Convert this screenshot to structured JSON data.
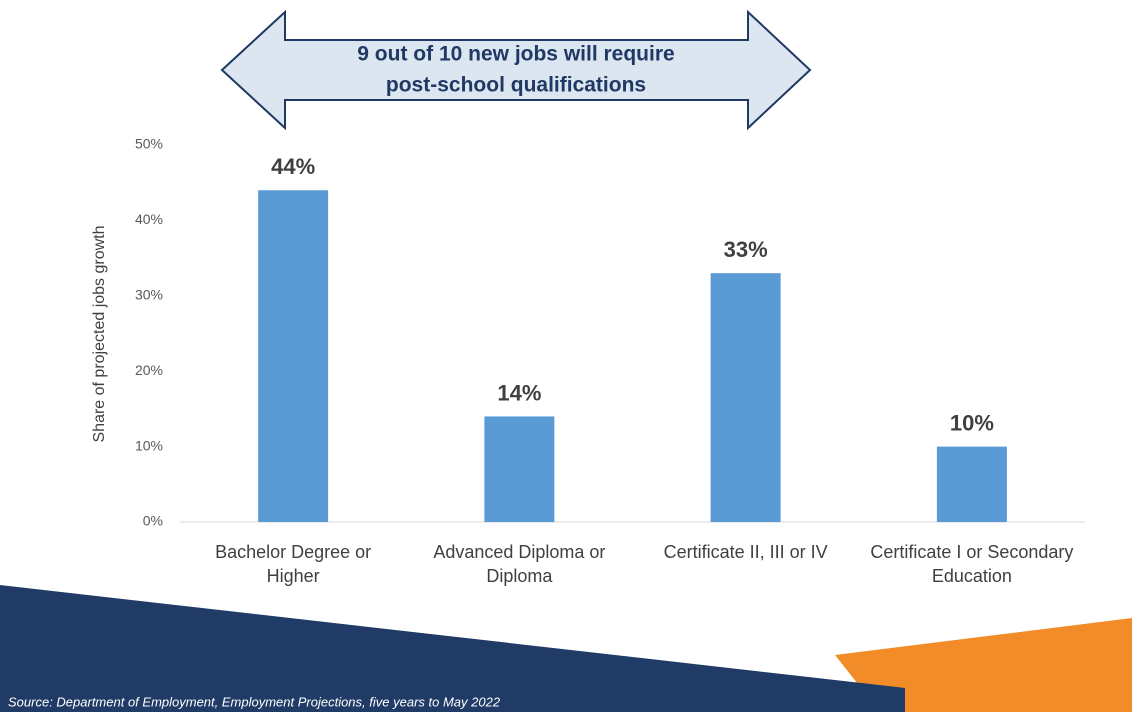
{
  "chart_data": {
    "type": "bar",
    "annotation": [
      "9 out of 10 new jobs will require",
      "post-school qualifications"
    ],
    "y_label": "Share of projected jobs growth",
    "categories": [
      "Bachelor Degree or Higher",
      "Advanced Diploma or Diploma",
      "Certificate II, III or IV",
      "Certificate I or Secondary Education"
    ],
    "values": [
      44,
      14,
      33,
      10
    ],
    "value_labels": [
      "44%",
      "14%",
      "33%",
      "10%"
    ],
    "color": "#5b9bd5",
    "ylim": [
      0,
      50
    ],
    "yticks": [
      {
        "value": 0,
        "label": "0%"
      },
      {
        "value": 10,
        "label": "10%"
      },
      {
        "value": 20,
        "label": "20%"
      },
      {
        "value": 30,
        "label": "30%"
      },
      {
        "value": 40,
        "label": "40%"
      },
      {
        "value": 50,
        "label": "50%"
      }
    ],
    "grid": false,
    "source": "Source: Department of Employment, Employment Projections, five years to May 2022"
  }
}
